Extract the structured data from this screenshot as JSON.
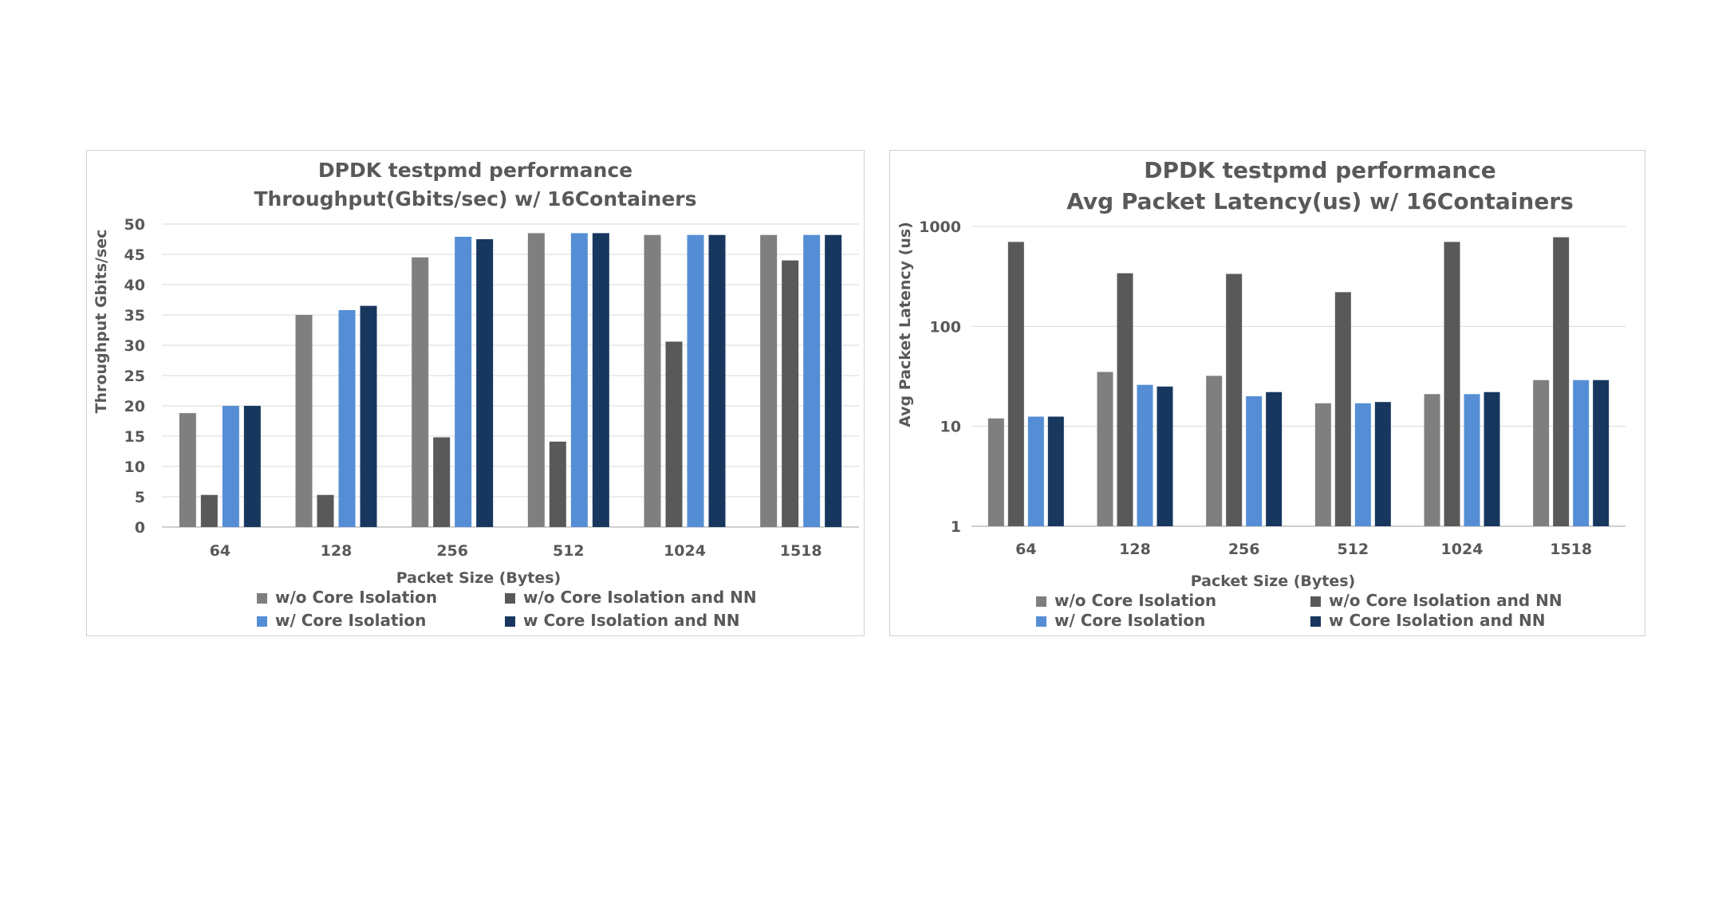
{
  "chart_data": [
    {
      "type": "bar",
      "title": "DPDK testpmd performance",
      "subtitle": "Throughput(Gbits/sec) w/ 16Containers",
      "xlabel": "Packet Size (Bytes)",
      "ylabel": "Throughput Gbits/sec",
      "ylim": [
        0,
        50
      ],
      "yticks": [
        "0",
        "5",
        "10",
        "15",
        "20",
        "25",
        "30",
        "35",
        "40",
        "45",
        "50"
      ],
      "ytick_values": [
        0,
        5,
        10,
        15,
        20,
        25,
        30,
        35,
        40,
        45,
        50
      ],
      "yscale": "linear",
      "grid": true,
      "legend_position": "bottom",
      "categories": [
        "64",
        "128",
        "256",
        "512",
        "1024",
        "1518"
      ],
      "series": [
        {
          "name": "w/o Core Isolation",
          "color": "#7f7f7f",
          "values": [
            18.8,
            35.0,
            44.5,
            48.5,
            48.2,
            48.2
          ]
        },
        {
          "name": "w/o Core Isolation and NN",
          "color": "#595959",
          "values": [
            5.3,
            5.3,
            14.8,
            14.1,
            30.6,
            44.0
          ]
        },
        {
          "name": "w/ Core Isolation",
          "color": "#558ed5",
          "values": [
            20.0,
            35.8,
            47.9,
            48.5,
            48.2,
            48.2
          ]
        },
        {
          "name": "w Core Isolation and NN",
          "color": "#17375e",
          "values": [
            20.0,
            36.5,
            47.5,
            48.5,
            48.2,
            48.2
          ]
        }
      ]
    },
    {
      "type": "bar",
      "title": "DPDK testpmd performance",
      "subtitle": "Avg Packet Latency(us)  w/ 16Containers",
      "xlabel": "Packet Size (Bytes)",
      "ylabel": "Avg Packet Latency (us)",
      "ylim": [
        1,
        1000
      ],
      "yticks": [
        "1",
        "10",
        "100",
        "1000"
      ],
      "ytick_values": [
        1,
        10,
        100,
        1000
      ],
      "yscale": "log",
      "grid": true,
      "legend_position": "bottom",
      "categories": [
        "64",
        "128",
        "256",
        "512",
        "1024",
        "1518"
      ],
      "series": [
        {
          "name": "w/o Core Isolation",
          "color": "#7f7f7f",
          "values": [
            12,
            35,
            32,
            17,
            21,
            29
          ]
        },
        {
          "name": "w/o Core Isolation and NN",
          "color": "#595959",
          "values": [
            700,
            340,
            335,
            220,
            700,
            780
          ]
        },
        {
          "name": "w/ Core Isolation",
          "color": "#558ed5",
          "values": [
            12.5,
            26,
            20,
            17,
            21,
            29
          ]
        },
        {
          "name": "w Core Isolation and NN",
          "color": "#17375e",
          "values": [
            12.5,
            25,
            22,
            17.5,
            22,
            29
          ]
        }
      ]
    }
  ]
}
